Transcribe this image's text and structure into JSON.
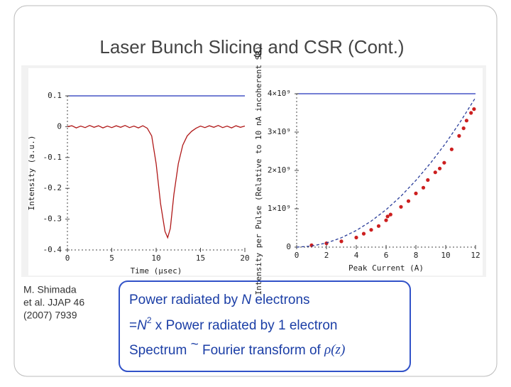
{
  "slide": {
    "title": "Laser Bunch Slicing and CSR (Cont.)",
    "citation": [
      "M. Shimada",
      "et al. JJAP 46",
      "(2007) 7939"
    ],
    "box": [
      [
        "Power radiated by ",
        "N",
        " electrons"
      ],
      [
        "=",
        "N",
        "2",
        " x Power radiated by 1 electron"
      ],
      [
        "Spectrum ",
        "~",
        " Fourier transform of ",
        "ρ",
        "(z)"
      ]
    ]
  },
  "chart_data": [
    {
      "type": "line",
      "xlabel": "Time (μsec)",
      "ylabel": "Intensity (a.u.)",
      "color": "#b01818",
      "x": [
        0,
        0.5,
        1,
        1.5,
        2,
        2.5,
        3,
        3.5,
        4,
        4.5,
        5,
        5.5,
        6,
        6.5,
        7,
        7.5,
        8,
        8.5,
        9,
        9.5,
        10,
        10.5,
        11,
        11.3,
        11.6,
        12,
        12.5,
        13,
        13.5,
        14,
        14.5,
        15,
        15.5,
        16,
        16.5,
        17,
        17.5,
        18,
        18.5,
        19,
        19.5,
        20
      ],
      "values": [
        0,
        0.003,
        -0.004,
        0.002,
        -0.003,
        0.004,
        -0.002,
        0.003,
        -0.004,
        0.002,
        -0.003,
        0.003,
        -0.002,
        0.004,
        -0.003,
        0.002,
        -0.004,
        0.003,
        -0.005,
        -0.03,
        -0.12,
        -0.25,
        -0.34,
        -0.36,
        -0.33,
        -0.22,
        -0.12,
        -0.06,
        -0.03,
        -0.015,
        -0.005,
        0.002,
        -0.003,
        0.003,
        -0.002,
        0.004,
        -0.003,
        0.002,
        -0.004,
        0.003,
        -0.002,
        0.002
      ],
      "xlim": [
        0,
        20
      ],
      "xticks": [
        0,
        5,
        10,
        15,
        20
      ],
      "ylim": [
        -0.4,
        0.1
      ],
      "yticks": [
        0.1,
        0,
        -0.1,
        -0.2,
        -0.3,
        -0.4
      ]
    },
    {
      "type": "scatter",
      "xlabel": "Peak Current (A)",
      "ylabel": "Intensity per Pulse (Relative to 10 nA incoherent SR)",
      "series": [
        {
          "color": "#cc1f1f",
          "x": [
            1,
            2,
            3,
            4,
            4.5,
            5,
            5.5,
            6,
            6.1,
            6.3,
            7,
            7.5,
            8,
            8.5,
            8.8,
            9.3,
            9.6,
            9.9,
            10.4,
            10.9,
            11.2,
            11.4,
            11.7,
            11.9
          ],
          "values": [
            50000000.0,
            100000000.0,
            150000000.0,
            250000000.0,
            350000000.0,
            450000000.0,
            550000000.0,
            700000000.0,
            800000000.0,
            850000000.0,
            1050000000.0,
            1200000000.0,
            1400000000.0,
            1550000000.0,
            1750000000.0,
            1950000000.0,
            2050000000.0,
            2200000000.0,
            2550000000.0,
            2900000000.0,
            3100000000.0,
            3300000000.0,
            3500000000.0,
            3600000000.0
          ]
        },
        {
          "color": "#2a3d9a",
          "style": "dashed",
          "x": [
            0,
            1,
            2,
            3,
            4,
            5,
            6,
            7,
            8,
            9,
            10,
            11,
            12
          ],
          "values": [
            0,
            27000000.0,
            108000000.0,
            244000000.0,
            434000000.0,
            678000000.0,
            976000000.0,
            1330000000.0,
            1740000000.0,
            2200000000.0,
            2710000000.0,
            3280000000.0,
            3900000000.0
          ]
        }
      ],
      "xlim": [
        0,
        12
      ],
      "xticks": [
        0,
        2,
        4,
        6,
        8,
        10,
        12
      ],
      "ylim": [
        0,
        4000000000.0
      ],
      "yticks": [
        0,
        {
          "value": 1000000000.0,
          "label": "1×10⁹"
        },
        {
          "value": 2000000000.0,
          "label": "2×10⁹"
        },
        {
          "value": 3000000000.0,
          "label": "3×10⁹"
        },
        {
          "value": 4000000000.0,
          "label": "4×10⁹"
        }
      ]
    }
  ]
}
